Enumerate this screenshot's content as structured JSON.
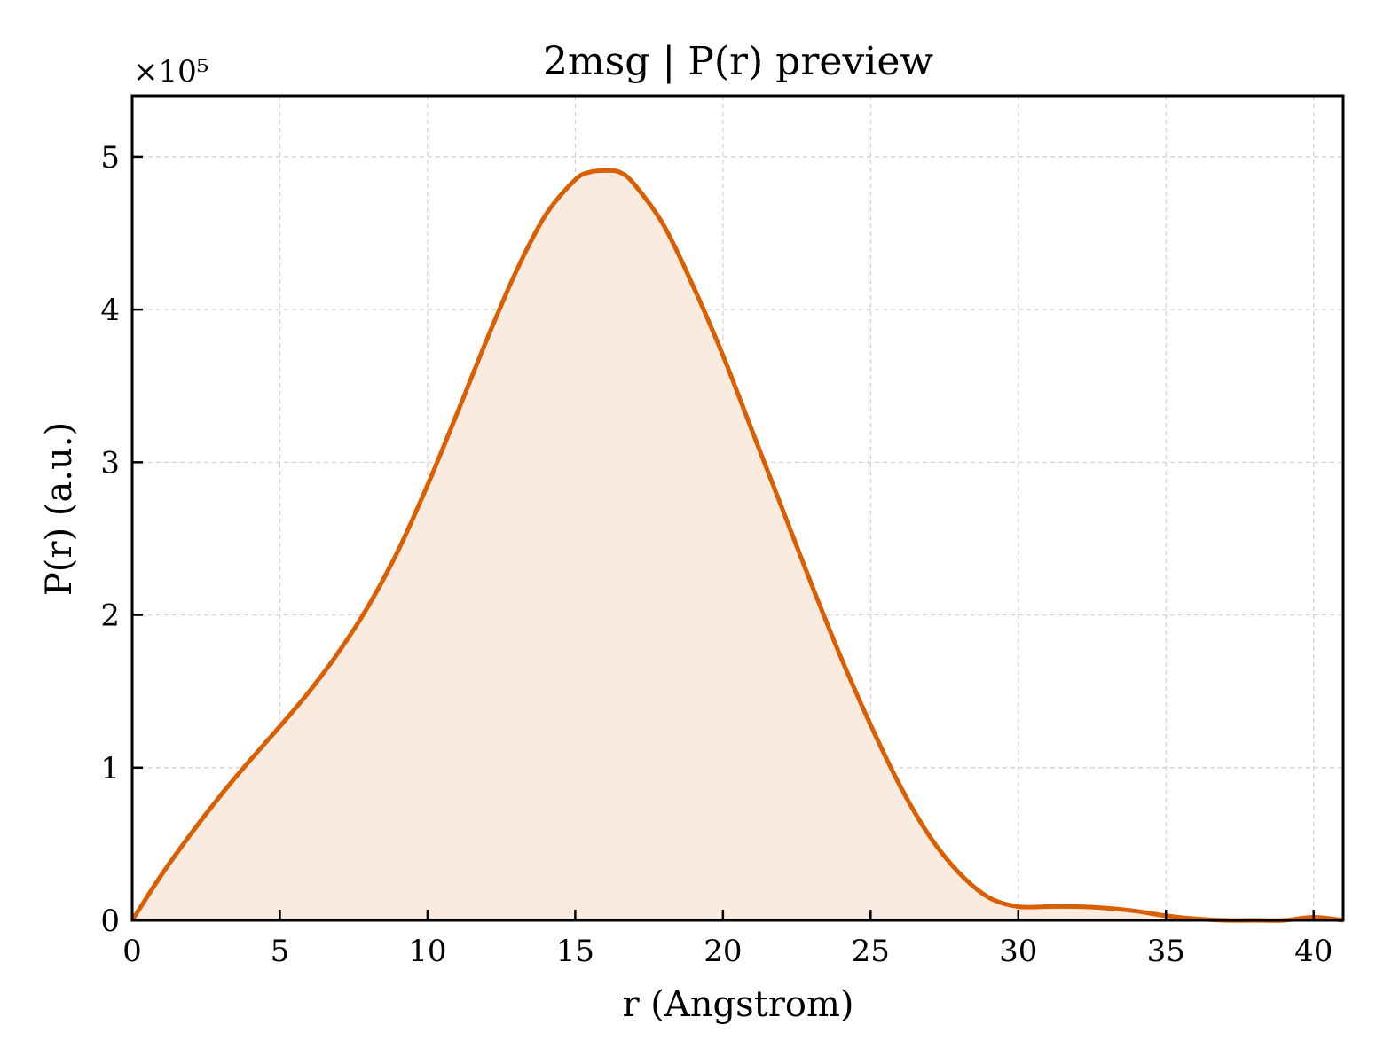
{
  "chart_data": {
    "type": "area",
    "title": "2msg | P(r) preview",
    "xlabel": "r (Angstrom)",
    "ylabel": "P(r) (a.u.)",
    "y_multiplier": "×10⁵",
    "xlim": [
      0,
      41
    ],
    "ylim": [
      0,
      5.4
    ],
    "x_ticks": [
      0,
      5,
      10,
      15,
      20,
      25,
      30,
      35,
      40
    ],
    "y_ticks": [
      0,
      1,
      2,
      3,
      4,
      5
    ],
    "grid": true,
    "line_color": "#d95f02",
    "fill_color": "#f9ebe0",
    "series": [
      {
        "x": [
          0,
          1,
          2,
          3,
          4,
          5,
          6,
          7,
          8,
          9,
          10,
          11,
          12,
          13,
          14,
          15,
          15.5,
          16,
          16.5,
          17,
          18,
          19,
          20,
          21,
          22,
          23,
          24,
          25,
          26,
          27,
          28,
          29,
          30,
          31,
          32,
          33,
          34,
          35,
          36,
          37,
          38,
          39,
          40,
          41
        ],
        "y": [
          0,
          0.3,
          0.57,
          0.82,
          1.05,
          1.27,
          1.5,
          1.76,
          2.06,
          2.42,
          2.85,
          3.32,
          3.8,
          4.25,
          4.62,
          4.85,
          4.9,
          4.91,
          4.9,
          4.82,
          4.55,
          4.15,
          3.7,
          3.2,
          2.7,
          2.2,
          1.72,
          1.28,
          0.88,
          0.55,
          0.31,
          0.15,
          0.09,
          0.09,
          0.09,
          0.08,
          0.06,
          0.03,
          0.01,
          0.0,
          0.0,
          0.0,
          0.02,
          0.0
        ]
      }
    ]
  }
}
